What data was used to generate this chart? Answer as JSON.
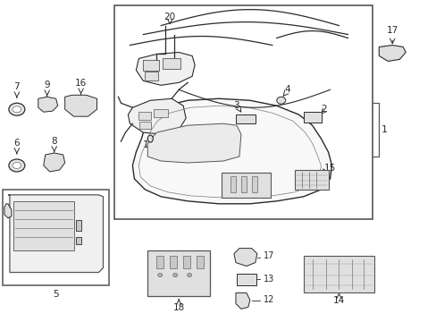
{
  "bg_color": "#ffffff",
  "fig_width": 4.89,
  "fig_height": 3.6,
  "dpi": 100,
  "line_color": "#2a2a2a",
  "light_fill": "#f0f0f0",
  "mid_fill": "#e0e0e0",
  "dark_fill": "#c8c8c8"
}
